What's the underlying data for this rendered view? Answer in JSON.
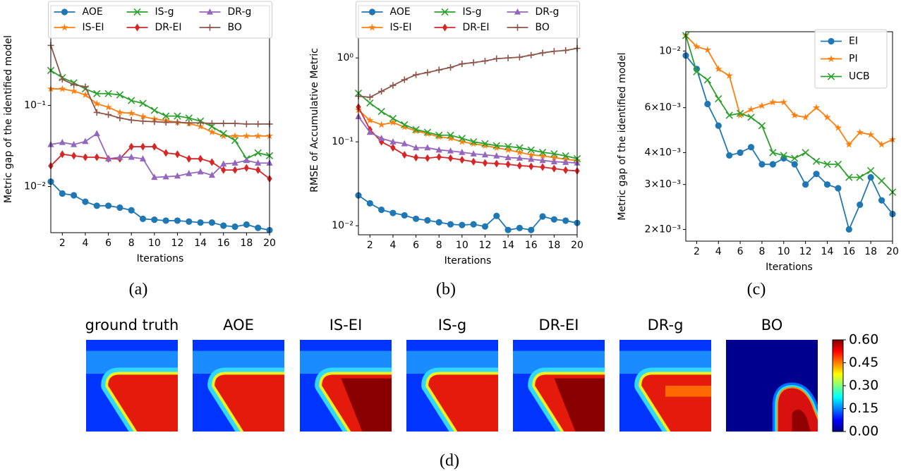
{
  "chart_data": [
    {
      "type": "line",
      "caption": "(a)",
      "x_label": "Iterations",
      "y_label": "Metric gap of the identified model",
      "log_y": true,
      "legend": "upper center",
      "legend_columns": 3,
      "x": [
        1,
        2,
        3,
        4,
        5,
        6,
        7,
        8,
        9,
        10,
        11,
        12,
        13,
        14,
        15,
        16,
        17,
        18,
        19,
        20
      ],
      "xlim": [
        1,
        20
      ],
      "xticks": [
        2,
        4,
        6,
        8,
        10,
        12,
        14,
        16,
        18,
        20
      ],
      "ylim": [
        0.0027,
        1.7
      ],
      "yticks": [
        {
          "value": 0.01,
          "label": "10⁻²"
        },
        {
          "value": 0.1,
          "label": "10⁻¹"
        }
      ],
      "series": [
        {
          "name": "AOE",
          "color": "#1f77b4",
          "marker": "circle",
          "values": [
            0.0115,
            0.0082,
            0.0078,
            0.0065,
            0.0058,
            0.0058,
            0.0055,
            0.0051,
            0.004,
            0.0039,
            0.0038,
            0.0038,
            0.0037,
            0.0036,
            0.0036,
            0.0033,
            0.0032,
            0.0034,
            0.0031,
            0.0029
          ]
        },
        {
          "name": "IS-EI",
          "color": "#ff7f0e",
          "marker": "star",
          "values": [
            0.16,
            0.16,
            0.15,
            0.135,
            0.105,
            0.095,
            0.082,
            0.08,
            0.073,
            0.068,
            0.065,
            0.062,
            0.06,
            0.055,
            0.047,
            0.042,
            0.042,
            0.042,
            0.042,
            0.042
          ]
        },
        {
          "name": "IS-g",
          "color": "#2ca02c",
          "marker": "x",
          "values": [
            0.27,
            0.22,
            0.19,
            0.16,
            0.14,
            0.14,
            0.135,
            0.115,
            0.106,
            0.087,
            0.074,
            0.074,
            0.07,
            0.064,
            0.055,
            0.045,
            0.037,
            0.022,
            0.026,
            0.024
          ]
        },
        {
          "name": "DR-EI",
          "color": "#d62728",
          "marker": "diamond",
          "values": [
            0.018,
            0.025,
            0.024,
            0.023,
            0.023,
            0.022,
            0.022,
            0.031,
            0.031,
            0.031,
            0.026,
            0.025,
            0.022,
            0.022,
            0.02,
            0.016,
            0.016,
            0.017,
            0.016,
            0.0125
          ]
        },
        {
          "name": "DR-g",
          "color": "#9467bd",
          "marker": "triangle",
          "values": [
            0.033,
            0.035,
            0.033,
            0.036,
            0.045,
            0.022,
            0.023,
            0.023,
            0.022,
            0.013,
            0.0132,
            0.0135,
            0.0145,
            0.0152,
            0.0138,
            0.019,
            0.0195,
            0.021,
            0.0195,
            0.0195
          ]
        },
        {
          "name": "BO",
          "color": "#8c564b",
          "marker": "plus",
          "values": [
            0.55,
            0.21,
            0.18,
            0.17,
            0.082,
            0.077,
            0.07,
            0.066,
            0.064,
            0.063,
            0.062,
            0.062,
            0.061,
            0.061,
            0.06,
            0.06,
            0.06,
            0.059,
            0.059,
            0.059
          ]
        }
      ]
    },
    {
      "type": "line",
      "caption": "(b)",
      "x_label": "Iterations",
      "y_label": "RMSE of Accumulative Metric",
      "log_y": true,
      "legend": "upper center",
      "legend_columns": 3,
      "x": [
        1,
        2,
        3,
        4,
        5,
        6,
        7,
        8,
        9,
        10,
        11,
        12,
        13,
        14,
        15,
        16,
        17,
        18,
        19,
        20
      ],
      "xlim": [
        1,
        20
      ],
      "xticks": [
        2,
        4,
        6,
        8,
        10,
        12,
        14,
        16,
        18,
        20
      ],
      "ylim": [
        0.0078,
        4.2
      ],
      "yticks": [
        {
          "value": 0.01,
          "label": "10⁻²"
        },
        {
          "value": 0.1,
          "label": "10⁻¹"
        },
        {
          "value": 1,
          "label": "10⁰"
        }
      ],
      "series": [
        {
          "name": "AOE",
          "color": "#1f77b4",
          "marker": "circle",
          "values": [
            0.023,
            0.0185,
            0.0155,
            0.0142,
            0.0133,
            0.0121,
            0.0116,
            0.011,
            0.0104,
            0.0102,
            0.0104,
            0.0098,
            0.0131,
            0.0089,
            0.0094,
            0.0089,
            0.0129,
            0.0119,
            0.0115,
            0.0108
          ]
        },
        {
          "name": "IS-EI",
          "color": "#ff7f0e",
          "marker": "star",
          "values": [
            0.24,
            0.18,
            0.16,
            0.17,
            0.15,
            0.135,
            0.125,
            0.115,
            0.11,
            0.1,
            0.095,
            0.09,
            0.085,
            0.08,
            0.075,
            0.07,
            0.068,
            0.065,
            0.062,
            0.06
          ]
        },
        {
          "name": "IS-g",
          "color": "#2ca02c",
          "marker": "x",
          "values": [
            0.38,
            0.29,
            0.23,
            0.19,
            0.16,
            0.14,
            0.13,
            0.12,
            0.12,
            0.11,
            0.1,
            0.095,
            0.09,
            0.088,
            0.085,
            0.08,
            0.075,
            0.072,
            0.068,
            0.063
          ]
        },
        {
          "name": "DR-EI",
          "color": "#d62728",
          "marker": "diamond",
          "values": [
            0.26,
            0.14,
            0.1,
            0.085,
            0.07,
            0.065,
            0.064,
            0.066,
            0.064,
            0.061,
            0.058,
            0.056,
            0.055,
            0.054,
            0.052,
            0.051,
            0.05,
            0.048,
            0.046,
            0.045
          ]
        },
        {
          "name": "DR-g",
          "color": "#9467bd",
          "marker": "triangle",
          "values": [
            0.2,
            0.13,
            0.11,
            0.1,
            0.095,
            0.085,
            0.085,
            0.08,
            0.078,
            0.075,
            0.072,
            0.07,
            0.068,
            0.065,
            0.064,
            0.062,
            0.06,
            0.058,
            0.057,
            0.056
          ]
        },
        {
          "name": "BO",
          "color": "#8c564b",
          "marker": "plus",
          "values": [
            0.35,
            0.34,
            0.4,
            0.47,
            0.55,
            0.63,
            0.67,
            0.72,
            0.77,
            0.85,
            0.88,
            0.92,
            0.98,
            1.0,
            1.02,
            1.08,
            1.15,
            1.2,
            1.23,
            1.3
          ]
        }
      ]
    },
    {
      "type": "line",
      "caption": "(c)",
      "x_label": "Iterations",
      "y_label": "Metric gap of the identified model",
      "log_y": true,
      "legend": "upper right",
      "legend_columns": 1,
      "x": [
        1,
        2,
        3,
        4,
        5,
        6,
        7,
        8,
        9,
        10,
        11,
        12,
        13,
        14,
        15,
        16,
        17,
        18,
        19,
        20
      ],
      "xlim": [
        1,
        20
      ],
      "xticks": [
        2,
        4,
        6,
        8,
        10,
        12,
        14,
        16,
        18,
        20
      ],
      "ylim": [
        0.0018,
        0.0119
      ],
      "yticks": [
        {
          "value": 0.002,
          "label": "2×10⁻³"
        },
        {
          "value": 0.003,
          "label": "3×10⁻³"
        },
        {
          "value": 0.004,
          "label": "4×10⁻³"
        },
        {
          "value": 0.006,
          "label": "6×10⁻³"
        },
        {
          "value": 0.01,
          "label": "10⁻²"
        }
      ],
      "series": [
        {
          "name": "EI",
          "color": "#1f77b4",
          "marker": "circle",
          "values": [
            0.0096,
            0.0085,
            0.0062,
            0.0051,
            0.0039,
            0.004,
            0.0042,
            0.0036,
            0.0036,
            0.0038,
            0.0036,
            0.003,
            0.0033,
            0.003,
            0.0029,
            0.002,
            0.0025,
            0.0032,
            0.0026,
            0.0023
          ]
        },
        {
          "name": "PI",
          "color": "#ff7f0e",
          "marker": "star",
          "values": [
            0.0115,
            0.0104,
            0.0101,
            0.0085,
            0.008,
            0.0056,
            0.0059,
            0.0061,
            0.0063,
            0.0063,
            0.0056,
            0.0055,
            0.006,
            0.0055,
            0.005,
            0.0043,
            0.0048,
            0.0047,
            0.0043,
            0.0045
          ]
        },
        {
          "name": "UCB",
          "color": "#2ca02c",
          "marker": "x",
          "values": [
            0.0115,
            0.0083,
            0.0077,
            0.0065,
            0.0056,
            0.0057,
            0.0055,
            0.0051,
            0.004,
            0.0039,
            0.0038,
            0.004,
            0.0037,
            0.0036,
            0.0036,
            0.0032,
            0.0032,
            0.0034,
            0.0031,
            0.0028
          ]
        }
      ]
    },
    {
      "type": "heatmap",
      "caption": "(d)",
      "colormap": "jet",
      "panel_titles": [
        "ground truth",
        "AOE",
        "IS-EI",
        "IS-g",
        "DR-EI",
        "DR-g",
        "BO"
      ],
      "clim": [
        0,
        0.6
      ],
      "cticks": [
        {
          "value": 0,
          "label": "0.00"
        },
        {
          "value": 0.15,
          "label": "0.15"
        },
        {
          "value": 0.3,
          "label": "0.30"
        },
        {
          "value": 0.45,
          "label": "0.45"
        },
        {
          "value": 0.6,
          "label": "0.60"
        }
      ]
    }
  ]
}
